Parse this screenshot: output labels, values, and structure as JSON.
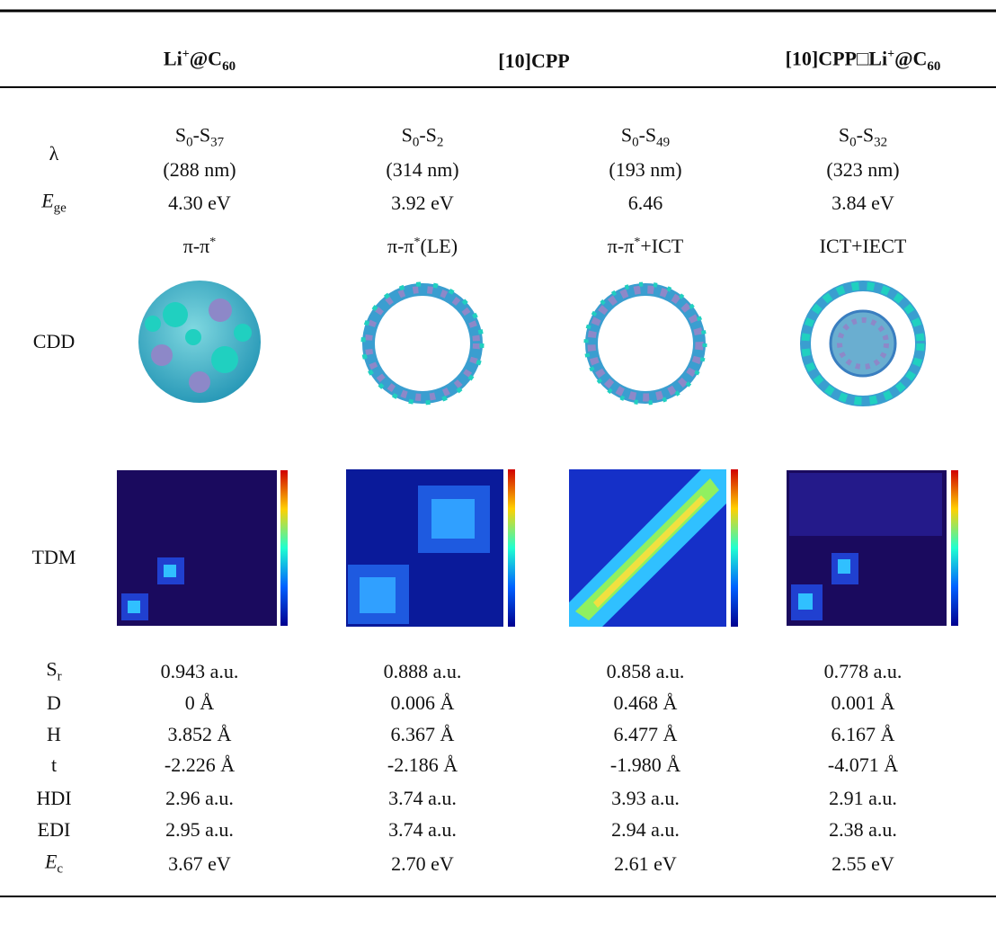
{
  "header": [
    [
      {
        "text": "Li"
      },
      {
        "text": "+",
        "style": "sup"
      },
      {
        "text": "@C"
      },
      {
        "text": "60",
        "style": "sub"
      }
    ],
    [
      {
        "text": "[10]CPP"
      }
    ],
    [
      {
        "text": "[10]CPP□Li"
      },
      {
        "text": "+",
        "style": "sup"
      },
      {
        "text": "@C"
      },
      {
        "text": "60",
        "style": "sub"
      }
    ]
  ],
  "rows": [
    {
      "label": [
        {
          "text": "λ"
        }
      ],
      "cells": [
        [
          [
            {
              "text": "S"
            },
            {
              "text": "0",
              "style": "sub"
            },
            {
              "text": "-S"
            },
            {
              "text": "37",
              "style": "sub"
            }
          ],
          [
            {
              "text": "(288 nm)"
            }
          ]
        ],
        [
          [
            {
              "text": "S"
            },
            {
              "text": "0",
              "style": "sub"
            },
            {
              "text": "-S"
            },
            {
              "text": "2",
              "style": "sub"
            }
          ],
          [
            {
              "text": "(314 nm)"
            }
          ]
        ],
        [
          [
            {
              "text": "S"
            },
            {
              "text": "0",
              "style": "sub"
            },
            {
              "text": "-S"
            },
            {
              "text": "49",
              "style": "sub"
            }
          ],
          [
            {
              "text": "(193 nm)"
            }
          ]
        ],
        [
          [
            {
              "text": "S"
            },
            {
              "text": "0",
              "style": "sub"
            },
            {
              "text": "-S"
            },
            {
              "text": "32",
              "style": "sub"
            }
          ],
          [
            {
              "text": "(323 nm)"
            }
          ]
        ]
      ]
    },
    {
      "label": [
        {
          "text": "E",
          "style": "italic"
        },
        {
          "text": "ge",
          "style": "sub"
        }
      ],
      "cells": [
        [
          [
            {
              "text": "4.30 eV"
            }
          ]
        ],
        [
          [
            {
              "text": "3.92 eV"
            }
          ]
        ],
        [
          [
            {
              "text": "6.46"
            }
          ]
        ],
        [
          [
            {
              "text": "3.84 eV"
            }
          ]
        ]
      ]
    },
    {
      "cells": [
        [
          [
            {
              "text": "π-π"
            },
            {
              "text": "*",
              "style": "sup"
            }
          ]
        ],
        [
          [
            {
              "text": "π-π"
            },
            {
              "text": "*",
              "style": "sup"
            },
            {
              "text": "(LE)"
            }
          ]
        ],
        [
          [
            {
              "text": "π-π"
            },
            {
              "text": "*",
              "style": "sup"
            },
            {
              "text": "+ICT"
            }
          ]
        ],
        [
          [
            {
              "text": "ICT+IECT"
            }
          ]
        ]
      ]
    },
    {
      "label": [
        {
          "text": "CDD"
        }
      ]
    },
    {
      "label": [
        {
          "text": "TDM"
        }
      ]
    },
    {
      "label": [
        {
          "text": "S"
        },
        {
          "text": "r",
          "style": "sub"
        }
      ],
      "cells": [
        [
          [
            {
              "text": "0.943 a.u."
            }
          ]
        ],
        [
          [
            {
              "text": "0.888 a.u."
            }
          ]
        ],
        [
          [
            {
              "text": "0.858 a.u."
            }
          ]
        ],
        [
          [
            {
              "text": "0.778 a.u."
            }
          ]
        ]
      ]
    },
    {
      "label": [
        {
          "text": "D"
        }
      ],
      "cells": [
        [
          [
            {
              "text": "0 Å"
            }
          ]
        ],
        [
          [
            {
              "text": "0.006 Å"
            }
          ]
        ],
        [
          [
            {
              "text": "0.468 Å"
            }
          ]
        ],
        [
          [
            {
              "text": "0.001 Å"
            }
          ]
        ]
      ]
    },
    {
      "label": [
        {
          "text": "H"
        }
      ],
      "cells": [
        [
          [
            {
              "text": "3.852 Å"
            }
          ]
        ],
        [
          [
            {
              "text": "6.367 Å"
            }
          ]
        ],
        [
          [
            {
              "text": "6.477 Å"
            }
          ]
        ],
        [
          [
            {
              "text": "6.167 Å"
            }
          ]
        ]
      ]
    },
    {
      "label": [
        {
          "text": "t"
        }
      ],
      "cells": [
        [
          [
            {
              "text": "-2.226 Å"
            }
          ]
        ],
        [
          [
            {
              "text": "-2.186 Å"
            }
          ]
        ],
        [
          [
            {
              "text": "-1.980 Å"
            }
          ]
        ],
        [
          [
            {
              "text": "-4.071 Å"
            }
          ]
        ]
      ]
    },
    {
      "label": [
        {
          "text": "HDI"
        }
      ],
      "cells": [
        [
          [
            {
              "text": "2.96 a.u."
            }
          ]
        ],
        [
          [
            {
              "text": "3.74 a.u."
            }
          ]
        ],
        [
          [
            {
              "text": "3.93 a.u."
            }
          ]
        ],
        [
          [
            {
              "text": "2.91 a.u."
            }
          ]
        ]
      ]
    },
    {
      "label": [
        {
          "text": "EDI"
        }
      ],
      "cells": [
        [
          [
            {
              "text": "2.95 a.u."
            }
          ]
        ],
        [
          [
            {
              "text": "3.74 a.u."
            }
          ]
        ],
        [
          [
            {
              "text": "2.94 a.u."
            }
          ]
        ],
        [
          [
            {
              "text": "2.38 a.u."
            }
          ]
        ]
      ]
    },
    {
      "label": [
        {
          "text": "E",
          "style": "italic"
        },
        {
          "text": "c",
          "style": "sub"
        }
      ],
      "cells": [
        [
          [
            {
              "text": "3.67 eV"
            }
          ]
        ],
        [
          [
            {
              "text": "2.70 eV"
            }
          ]
        ],
        [
          [
            {
              "text": "2.61 eV"
            }
          ]
        ],
        [
          [
            {
              "text": "2.55 eV"
            }
          ]
        ]
      ]
    }
  ]
}
